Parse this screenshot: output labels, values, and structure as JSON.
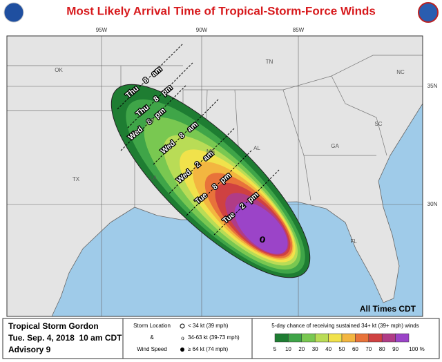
{
  "header": {
    "title": "Most Likely Arrival Time of Tropical-Storm-Force Winds"
  },
  "map": {
    "lon_labels": [
      "95W",
      "90W",
      "85W"
    ],
    "lat_labels": [
      "35N",
      "30N"
    ],
    "state_labels": [
      "OK",
      "TN",
      "NC",
      "AR",
      "MS",
      "AL",
      "GA",
      "SC",
      "LA",
      "TX",
      "FL"
    ],
    "time_labels": [
      {
        "day": "Thu",
        "hour": "8",
        "period": "am"
      },
      {
        "day": "Thu",
        "hour": "8",
        "period": "pm"
      },
      {
        "day": "Wed",
        "hour": "8",
        "period": "pm"
      },
      {
        "day": "Wed",
        "hour": "8",
        "period": "am"
      },
      {
        "day": "Wed",
        "hour": "2",
        "period": "am"
      },
      {
        "day": "Tue",
        "hour": "8",
        "period": "pm"
      },
      {
        "day": "Tue",
        "hour": "2",
        "period": "pm"
      }
    ],
    "note": "All Times CDT"
  },
  "info": {
    "storm": "Tropical Storm Gordon",
    "date": "Tue. Sep. 4, 2018  10 am CDT",
    "advisory": "Advisory 9"
  },
  "legend": {
    "title_1": "Storm Location",
    "title_2": "&",
    "title_3": "Wind Speed",
    "items": [
      "< 34 kt (39 mph)",
      "34-63 kt (39-73 mph)",
      "≥ 64 kt (74 mph)"
    ]
  },
  "colorbar": {
    "title": "5-day chance of receiving sustained 34+ kt (39+ mph) winds",
    "ticks": [
      "5",
      "10",
      "20",
      "30",
      "40",
      "50",
      "60",
      "70",
      "80",
      "90",
      "100 %"
    ]
  }
}
